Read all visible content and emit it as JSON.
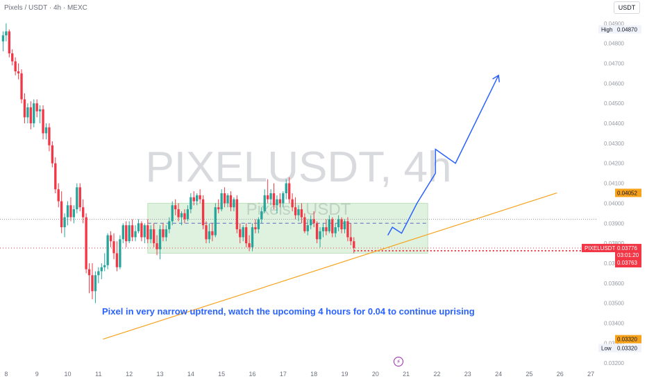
{
  "header": {
    "title": "Pixels / USDT · 4h · MEXC",
    "currency_button": "USDT"
  },
  "watermark": {
    "main": "PIXELUSDT, 4h",
    "sub": "Pixels · USDT"
  },
  "annotation": "Pixel in very narrow uptrend, watch the upcoming 4 hours for 0.04 to continue uprising",
  "icons": {
    "events": "lightning-icon"
  },
  "colors": {
    "up": "#26a69a",
    "down": "#f23645",
    "projection": "#2962ff",
    "trendline": "#f7a21b",
    "range_box": "#4caf50",
    "annotation": "#2962ff"
  },
  "chart_data": {
    "type": "candlestick",
    "symbol": "PIXELUSDT",
    "interval": "4h",
    "x_ticks": [
      "8",
      "9",
      "10",
      "11",
      "12",
      "13",
      "14",
      "15",
      "16",
      "17",
      "18",
      "19",
      "20",
      "21",
      "22",
      "23",
      "24",
      "25",
      "26",
      "27"
    ],
    "y_ticks": [
      "0.04900",
      "0.04800",
      "0.04700",
      "0.04600",
      "0.04500",
      "0.04400",
      "0.04300",
      "0.04200",
      "0.04100",
      "0.04000",
      "0.03900",
      "0.03800",
      "0.03700",
      "0.03600",
      "0.03500",
      "0.03400",
      "0.03300",
      "0.03200"
    ],
    "ylim": [
      0.0318,
      0.0492
    ],
    "xlim": [
      7.8,
      27.2
    ],
    "candles": [
      {
        "x": 7.9,
        "o": 0.0481,
        "h": 0.0486,
        "l": 0.0476,
        "c": 0.0484
      },
      {
        "x": 8.0,
        "o": 0.0484,
        "h": 0.049,
        "l": 0.0481,
        "c": 0.0486
      },
      {
        "x": 8.1,
        "o": 0.0486,
        "h": 0.0487,
        "l": 0.0473,
        "c": 0.0475
      },
      {
        "x": 8.2,
        "o": 0.0475,
        "h": 0.0477,
        "l": 0.0469,
        "c": 0.0471
      },
      {
        "x": 8.3,
        "o": 0.0471,
        "h": 0.0473,
        "l": 0.0464,
        "c": 0.0466
      },
      {
        "x": 8.4,
        "o": 0.0466,
        "h": 0.047,
        "l": 0.0462,
        "c": 0.0465
      },
      {
        "x": 8.5,
        "o": 0.0465,
        "h": 0.0467,
        "l": 0.045,
        "c": 0.0452
      },
      {
        "x": 8.6,
        "o": 0.0452,
        "h": 0.0455,
        "l": 0.044,
        "c": 0.0443
      },
      {
        "x": 8.7,
        "o": 0.0443,
        "h": 0.045,
        "l": 0.044,
        "c": 0.0448
      },
      {
        "x": 8.8,
        "o": 0.0448,
        "h": 0.0451,
        "l": 0.0437,
        "c": 0.044
      },
      {
        "x": 8.9,
        "o": 0.044,
        "h": 0.0452,
        "l": 0.0438,
        "c": 0.045
      },
      {
        "x": 9.0,
        "o": 0.045,
        "h": 0.0452,
        "l": 0.0443,
        "c": 0.0446
      },
      {
        "x": 9.1,
        "o": 0.0446,
        "h": 0.0449,
        "l": 0.044,
        "c": 0.0447
      },
      {
        "x": 9.2,
        "o": 0.0447,
        "h": 0.0449,
        "l": 0.0432,
        "c": 0.0435
      },
      {
        "x": 9.3,
        "o": 0.0435,
        "h": 0.044,
        "l": 0.0432,
        "c": 0.0438
      },
      {
        "x": 9.4,
        "o": 0.0438,
        "h": 0.044,
        "l": 0.0426,
        "c": 0.0429
      },
      {
        "x": 9.5,
        "o": 0.0429,
        "h": 0.0431,
        "l": 0.0418,
        "c": 0.042
      },
      {
        "x": 9.6,
        "o": 0.042,
        "h": 0.0423,
        "l": 0.0405,
        "c": 0.0407
      },
      {
        "x": 9.7,
        "o": 0.0407,
        "h": 0.041,
        "l": 0.0398,
        "c": 0.0401
      },
      {
        "x": 9.8,
        "o": 0.0401,
        "h": 0.0406,
        "l": 0.0385,
        "c": 0.0388
      },
      {
        "x": 9.9,
        "o": 0.0388,
        "h": 0.0395,
        "l": 0.0383,
        "c": 0.0393
      },
      {
        "x": 10.0,
        "o": 0.0393,
        "h": 0.0401,
        "l": 0.0389,
        "c": 0.0399
      },
      {
        "x": 10.1,
        "o": 0.0399,
        "h": 0.0403,
        "l": 0.0391,
        "c": 0.0393
      },
      {
        "x": 10.2,
        "o": 0.0393,
        "h": 0.0399,
        "l": 0.039,
        "c": 0.0397
      },
      {
        "x": 10.3,
        "o": 0.0397,
        "h": 0.041,
        "l": 0.0395,
        "c": 0.0408
      },
      {
        "x": 10.4,
        "o": 0.0408,
        "h": 0.041,
        "l": 0.0396,
        "c": 0.0398
      },
      {
        "x": 10.5,
        "o": 0.0398,
        "h": 0.0402,
        "l": 0.039,
        "c": 0.0393
      },
      {
        "x": 10.6,
        "o": 0.0393,
        "h": 0.0395,
        "l": 0.0365,
        "c": 0.0367
      },
      {
        "x": 10.7,
        "o": 0.0367,
        "h": 0.037,
        "l": 0.0355,
        "c": 0.0364
      },
      {
        "x": 10.8,
        "o": 0.0364,
        "h": 0.037,
        "l": 0.0352,
        "c": 0.0356
      },
      {
        "x": 10.9,
        "o": 0.0356,
        "h": 0.0366,
        "l": 0.035,
        "c": 0.0364
      },
      {
        "x": 11.0,
        "o": 0.0364,
        "h": 0.0368,
        "l": 0.036,
        "c": 0.0366
      },
      {
        "x": 11.1,
        "o": 0.0366,
        "h": 0.037,
        "l": 0.0362,
        "c": 0.0368
      },
      {
        "x": 11.2,
        "o": 0.0368,
        "h": 0.0375,
        "l": 0.0366,
        "c": 0.0369
      },
      {
        "x": 11.3,
        "o": 0.0369,
        "h": 0.0385,
        "l": 0.0367,
        "c": 0.0384
      },
      {
        "x": 11.4,
        "o": 0.0384,
        "h": 0.0386,
        "l": 0.0378,
        "c": 0.0381
      },
      {
        "x": 11.5,
        "o": 0.0381,
        "h": 0.0385,
        "l": 0.0372,
        "c": 0.0375
      },
      {
        "x": 11.6,
        "o": 0.0375,
        "h": 0.0381,
        "l": 0.0366,
        "c": 0.0368
      },
      {
        "x": 11.7,
        "o": 0.0368,
        "h": 0.0384,
        "l": 0.0367,
        "c": 0.0382
      },
      {
        "x": 11.8,
        "o": 0.0382,
        "h": 0.039,
        "l": 0.038,
        "c": 0.0389
      },
      {
        "x": 11.9,
        "o": 0.0389,
        "h": 0.0391,
        "l": 0.0378,
        "c": 0.0381
      },
      {
        "x": 12.0,
        "o": 0.0381,
        "h": 0.0391,
        "l": 0.038,
        "c": 0.0389
      },
      {
        "x": 12.1,
        "o": 0.0389,
        "h": 0.0392,
        "l": 0.0381,
        "c": 0.0383
      },
      {
        "x": 12.2,
        "o": 0.0383,
        "h": 0.0389,
        "l": 0.0381,
        "c": 0.0386
      },
      {
        "x": 12.3,
        "o": 0.0386,
        "h": 0.0392,
        "l": 0.0385,
        "c": 0.039
      },
      {
        "x": 12.4,
        "o": 0.039,
        "h": 0.0391,
        "l": 0.0381,
        "c": 0.0383
      },
      {
        "x": 12.5,
        "o": 0.0383,
        "h": 0.039,
        "l": 0.038,
        "c": 0.0389
      },
      {
        "x": 12.6,
        "o": 0.0389,
        "h": 0.0392,
        "l": 0.038,
        "c": 0.0382
      },
      {
        "x": 12.7,
        "o": 0.0382,
        "h": 0.0389,
        "l": 0.038,
        "c": 0.0387
      },
      {
        "x": 12.8,
        "o": 0.0387,
        "h": 0.039,
        "l": 0.0378,
        "c": 0.038
      },
      {
        "x": 12.9,
        "o": 0.038,
        "h": 0.0384,
        "l": 0.0374,
        "c": 0.0377
      },
      {
        "x": 13.0,
        "o": 0.0377,
        "h": 0.0389,
        "l": 0.0372,
        "c": 0.0387
      },
      {
        "x": 13.1,
        "o": 0.0387,
        "h": 0.039,
        "l": 0.0381,
        "c": 0.0383
      },
      {
        "x": 13.2,
        "o": 0.0383,
        "h": 0.0389,
        "l": 0.0381,
        "c": 0.0387
      },
      {
        "x": 13.3,
        "o": 0.0387,
        "h": 0.0393,
        "l": 0.0385,
        "c": 0.0391
      },
      {
        "x": 13.4,
        "o": 0.0391,
        "h": 0.0401,
        "l": 0.0389,
        "c": 0.0399
      },
      {
        "x": 13.5,
        "o": 0.0399,
        "h": 0.0402,
        "l": 0.0394,
        "c": 0.0397
      },
      {
        "x": 13.6,
        "o": 0.0397,
        "h": 0.04,
        "l": 0.0391,
        "c": 0.0393
      },
      {
        "x": 13.7,
        "o": 0.0393,
        "h": 0.0396,
        "l": 0.0389,
        "c": 0.0395
      },
      {
        "x": 13.8,
        "o": 0.0395,
        "h": 0.0397,
        "l": 0.039,
        "c": 0.0392
      },
      {
        "x": 13.9,
        "o": 0.0392,
        "h": 0.0399,
        "l": 0.0391,
        "c": 0.0397
      },
      {
        "x": 14.0,
        "o": 0.0397,
        "h": 0.0405,
        "l": 0.0395,
        "c": 0.0403
      },
      {
        "x": 14.1,
        "o": 0.0403,
        "h": 0.0406,
        "l": 0.0399,
        "c": 0.0401
      },
      {
        "x": 14.2,
        "o": 0.0401,
        "h": 0.0405,
        "l": 0.0399,
        "c": 0.0404
      },
      {
        "x": 14.3,
        "o": 0.0404,
        "h": 0.0407,
        "l": 0.04,
        "c": 0.0402
      },
      {
        "x": 14.4,
        "o": 0.0402,
        "h": 0.0404,
        "l": 0.0387,
        "c": 0.0389
      },
      {
        "x": 14.5,
        "o": 0.0389,
        "h": 0.0391,
        "l": 0.038,
        "c": 0.0382
      },
      {
        "x": 14.6,
        "o": 0.0382,
        "h": 0.039,
        "l": 0.038,
        "c": 0.0386
      },
      {
        "x": 14.7,
        "o": 0.0386,
        "h": 0.039,
        "l": 0.0381,
        "c": 0.0384
      },
      {
        "x": 14.8,
        "o": 0.0384,
        "h": 0.04,
        "l": 0.0383,
        "c": 0.0398
      },
      {
        "x": 14.9,
        "o": 0.0398,
        "h": 0.0402,
        "l": 0.0395,
        "c": 0.0397
      },
      {
        "x": 15.0,
        "o": 0.0397,
        "h": 0.0407,
        "l": 0.0396,
        "c": 0.0405
      },
      {
        "x": 15.1,
        "o": 0.0405,
        "h": 0.0408,
        "l": 0.0398,
        "c": 0.04
      },
      {
        "x": 15.2,
        "o": 0.04,
        "h": 0.0405,
        "l": 0.0398,
        "c": 0.0404
      },
      {
        "x": 15.3,
        "o": 0.0404,
        "h": 0.0406,
        "l": 0.0396,
        "c": 0.0398
      },
      {
        "x": 15.4,
        "o": 0.0398,
        "h": 0.0403,
        "l": 0.0396,
        "c": 0.0402
      },
      {
        "x": 15.5,
        "o": 0.0402,
        "h": 0.0404,
        "l": 0.0385,
        "c": 0.0387
      },
      {
        "x": 15.6,
        "o": 0.0387,
        "h": 0.039,
        "l": 0.038,
        "c": 0.0383
      },
      {
        "x": 15.7,
        "o": 0.0383,
        "h": 0.0389,
        "l": 0.0381,
        "c": 0.0388
      },
      {
        "x": 15.8,
        "o": 0.0388,
        "h": 0.039,
        "l": 0.0378,
        "c": 0.038
      },
      {
        "x": 15.9,
        "o": 0.038,
        "h": 0.0384,
        "l": 0.0376,
        "c": 0.0378
      },
      {
        "x": 16.0,
        "o": 0.0378,
        "h": 0.039,
        "l": 0.0376,
        "c": 0.0388
      },
      {
        "x": 16.1,
        "o": 0.0388,
        "h": 0.0392,
        "l": 0.0385,
        "c": 0.0387
      },
      {
        "x": 16.2,
        "o": 0.0387,
        "h": 0.0393,
        "l": 0.0385,
        "c": 0.0392
      },
      {
        "x": 16.3,
        "o": 0.0392,
        "h": 0.0398,
        "l": 0.039,
        "c": 0.0396
      },
      {
        "x": 16.4,
        "o": 0.0396,
        "h": 0.0407,
        "l": 0.0395,
        "c": 0.0404
      },
      {
        "x": 16.5,
        "o": 0.0404,
        "h": 0.0412,
        "l": 0.04,
        "c": 0.0402
      },
      {
        "x": 16.6,
        "o": 0.0402,
        "h": 0.0407,
        "l": 0.0399,
        "c": 0.0405
      },
      {
        "x": 16.7,
        "o": 0.0405,
        "h": 0.041,
        "l": 0.0397,
        "c": 0.0399
      },
      {
        "x": 16.8,
        "o": 0.0399,
        "h": 0.0404,
        "l": 0.0395,
        "c": 0.0402
      },
      {
        "x": 16.9,
        "o": 0.0402,
        "h": 0.0405,
        "l": 0.0398,
        "c": 0.04
      },
      {
        "x": 17.0,
        "o": 0.04,
        "h": 0.0406,
        "l": 0.0398,
        "c": 0.0405
      },
      {
        "x": 17.1,
        "o": 0.0405,
        "h": 0.0412,
        "l": 0.0402,
        "c": 0.041
      },
      {
        "x": 17.2,
        "o": 0.041,
        "h": 0.0413,
        "l": 0.04,
        "c": 0.0402
      },
      {
        "x": 17.3,
        "o": 0.0402,
        "h": 0.0405,
        "l": 0.0396,
        "c": 0.0398
      },
      {
        "x": 17.4,
        "o": 0.0398,
        "h": 0.0403,
        "l": 0.0392,
        "c": 0.0394
      },
      {
        "x": 17.5,
        "o": 0.0394,
        "h": 0.0399,
        "l": 0.0391,
        "c": 0.0397
      },
      {
        "x": 17.6,
        "o": 0.0397,
        "h": 0.04,
        "l": 0.039,
        "c": 0.0393
      },
      {
        "x": 17.7,
        "o": 0.0393,
        "h": 0.0395,
        "l": 0.0385,
        "c": 0.0386
      },
      {
        "x": 17.8,
        "o": 0.0386,
        "h": 0.0392,
        "l": 0.0384,
        "c": 0.0389
      },
      {
        "x": 17.9,
        "o": 0.0389,
        "h": 0.0394,
        "l": 0.0387,
        "c": 0.0392
      },
      {
        "x": 18.0,
        "o": 0.0392,
        "h": 0.0396,
        "l": 0.0388,
        "c": 0.039
      },
      {
        "x": 18.1,
        "o": 0.039,
        "h": 0.0391,
        "l": 0.038,
        "c": 0.0382
      },
      {
        "x": 18.2,
        "o": 0.0382,
        "h": 0.0388,
        "l": 0.0378,
        "c": 0.0386
      },
      {
        "x": 18.3,
        "o": 0.0386,
        "h": 0.039,
        "l": 0.0383,
        "c": 0.0388
      },
      {
        "x": 18.4,
        "o": 0.0388,
        "h": 0.0392,
        "l": 0.0384,
        "c": 0.0386
      },
      {
        "x": 18.5,
        "o": 0.0386,
        "h": 0.0394,
        "l": 0.0385,
        "c": 0.0392
      },
      {
        "x": 18.6,
        "o": 0.0392,
        "h": 0.0393,
        "l": 0.0383,
        "c": 0.0385
      },
      {
        "x": 18.7,
        "o": 0.0385,
        "h": 0.039,
        "l": 0.0383,
        "c": 0.0388
      },
      {
        "x": 18.8,
        "o": 0.0388,
        "h": 0.0394,
        "l": 0.0386,
        "c": 0.0392
      },
      {
        "x": 18.9,
        "o": 0.0392,
        "h": 0.0393,
        "l": 0.0385,
        "c": 0.0387
      },
      {
        "x": 19.0,
        "o": 0.0387,
        "h": 0.0392,
        "l": 0.0385,
        "c": 0.0391
      },
      {
        "x": 19.1,
        "o": 0.0391,
        "h": 0.0393,
        "l": 0.0381,
        "c": 0.0383
      },
      {
        "x": 19.2,
        "o": 0.0383,
        "h": 0.039,
        "l": 0.0379,
        "c": 0.0381
      },
      {
        "x": 19.3,
        "o": 0.0381,
        "h": 0.0383,
        "l": 0.0375,
        "c": 0.03776
      }
    ],
    "trendline": [
      {
        "x": 11.15,
        "y": 0.0332
      },
      {
        "x": 25.9,
        "y": 0.04052
      }
    ],
    "range_box": {
      "x0": 12.6,
      "x1": 21.7,
      "y0": 0.0375,
      "y1": 0.04
    },
    "projection": [
      {
        "x": 20.4,
        "y": 0.0384
      },
      {
        "x": 20.55,
        "y": 0.0388
      },
      {
        "x": 20.85,
        "y": 0.0385
      },
      {
        "x": 21.35,
        "y": 0.04
      },
      {
        "x": 21.95,
        "y": 0.0415
      },
      {
        "x": 21.95,
        "y": 0.0427
      },
      {
        "x": 22.6,
        "y": 0.042
      },
      {
        "x": 24.0,
        "y": 0.0464
      }
    ],
    "dashed_mid_level": 0.039,
    "reference_level": 0.0392,
    "current_price_line": 0.03776,
    "price_labels": {
      "high": {
        "label": "High",
        "value": "0.04870",
        "y": 0.0487
      },
      "low": {
        "label": "Low",
        "value": "0.03320",
        "y": 0.0332
      },
      "trend_tag": {
        "value": "0.04052",
        "y": 0.04052
      },
      "low_tag": {
        "value": "0.03320",
        "y": 0.0332
      },
      "current": {
        "symbol": "PIXELUSDT",
        "price": "0.03776",
        "countdown": "03:01:20",
        "secondary": "0.03763",
        "y": 0.03776
      }
    }
  }
}
